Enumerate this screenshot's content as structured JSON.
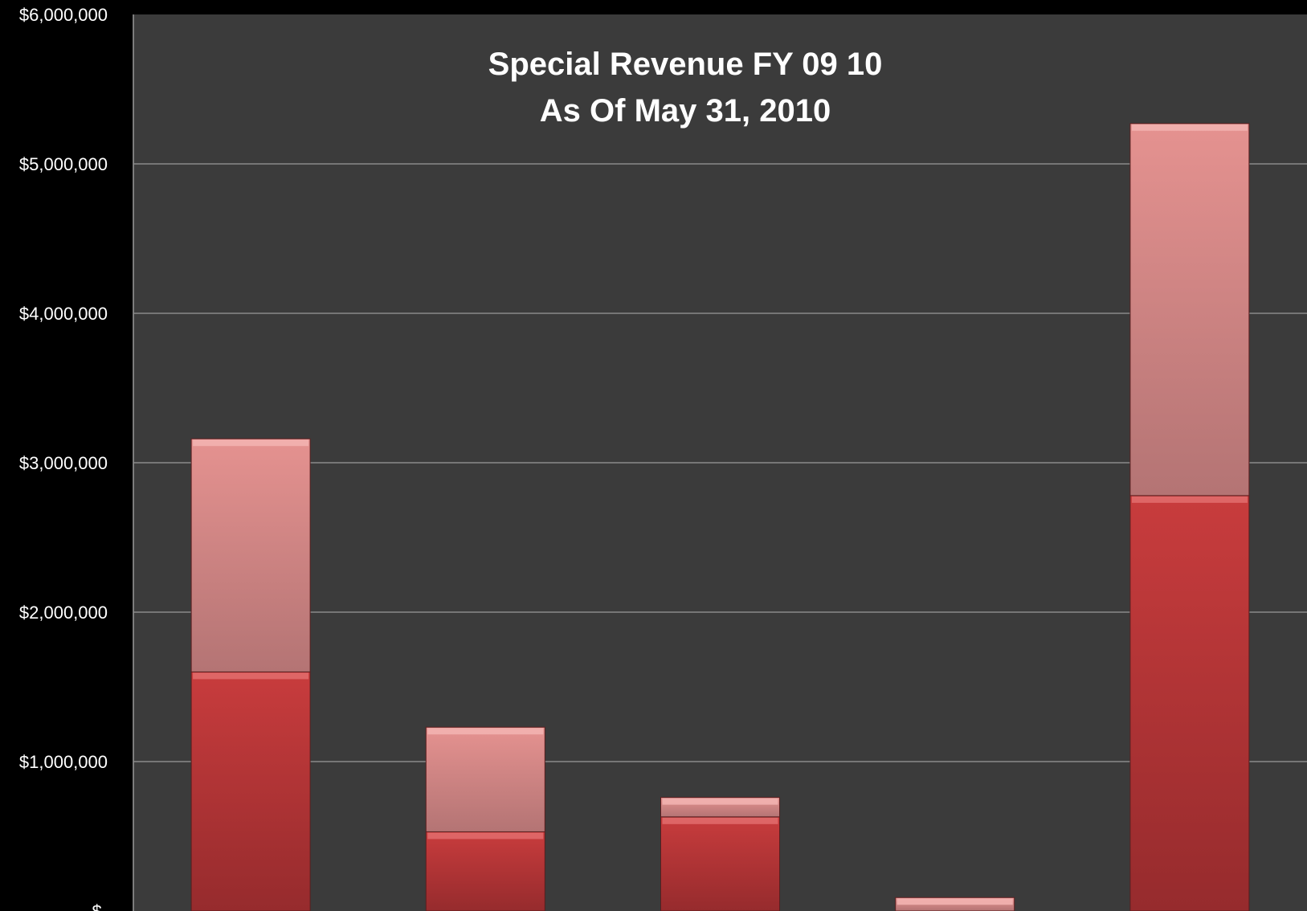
{
  "colors": {
    "page_background": "#000000",
    "plot_background": "#3b3b3b",
    "gridline": "#8a8a8a",
    "text": "#ffffff",
    "series_lower": "#c0393b",
    "series_upper": "#d98a8a"
  },
  "chart_data": {
    "type": "bar",
    "stacked": true,
    "title": [
      "Special Revenue FY 09 10",
      "As Of May 31, 2010"
    ],
    "xlabel": "",
    "ylabel": "",
    "categories": [
      "",
      "",
      "",
      "",
      ""
    ],
    "series": [
      {
        "values": [
          1600000,
          530000,
          630000,
          0,
          2780000
        ]
      },
      {
        "values": [
          1560000,
          700000,
          130000,
          90000,
          2490000
        ]
      }
    ],
    "ylim": [
      0,
      6000000
    ],
    "yticks": [
      0,
      1000000,
      2000000,
      3000000,
      4000000,
      5000000,
      6000000
    ],
    "ytick_labels": [
      "$-",
      "$1,000,000",
      "$2,000,000",
      "$3,000,000",
      "$4,000,000",
      "$5,000,000",
      "$6,000,000"
    ],
    "grid": true,
    "legend": "none"
  }
}
